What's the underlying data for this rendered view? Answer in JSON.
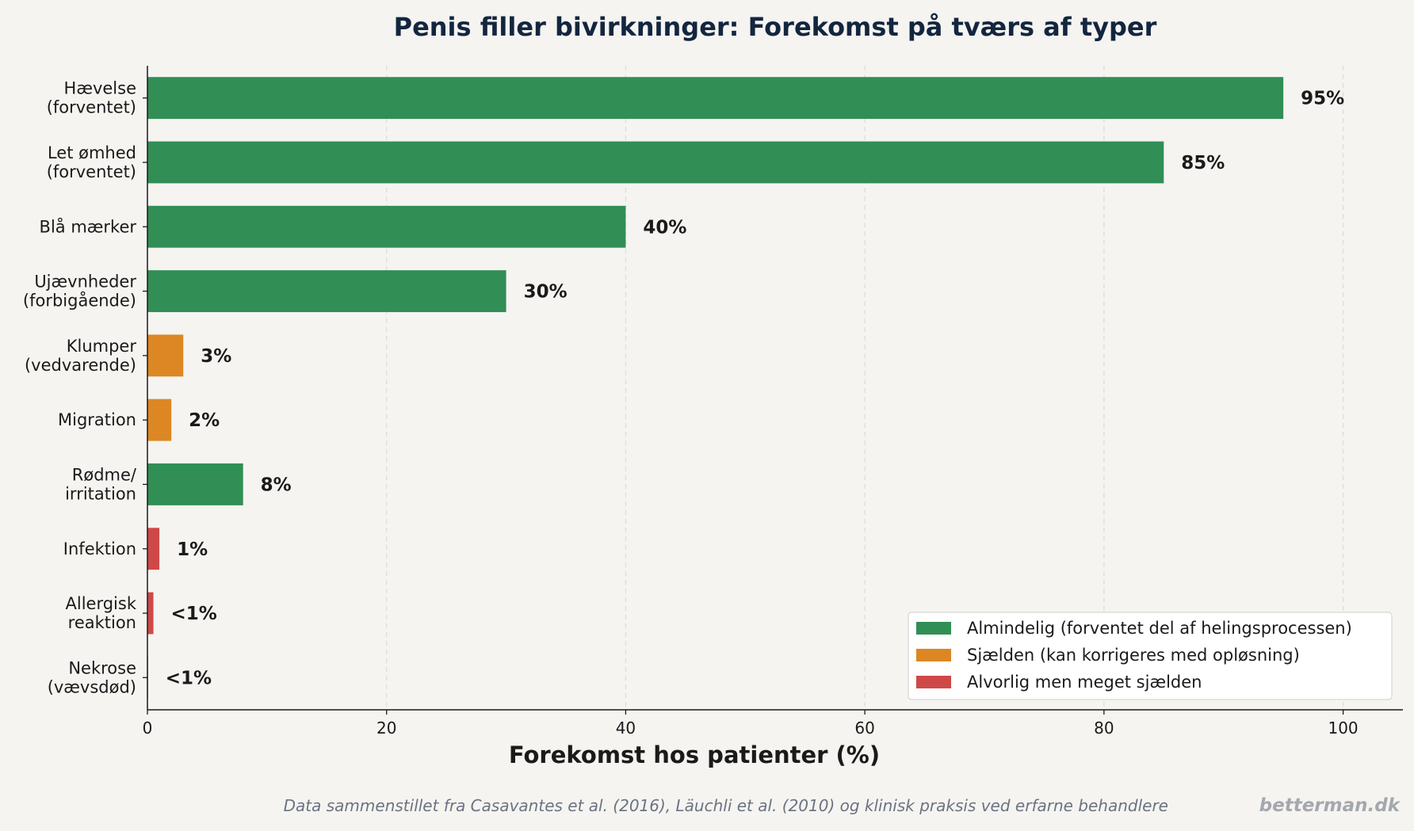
{
  "chart_data": {
    "type": "bar",
    "orientation": "horizontal",
    "title": "Penis filler bivirkninger: Forekomst på tværs af typer",
    "xlabel": "Forekomst hos patienter (%)",
    "ylabel": "",
    "xlim": [
      0,
      105
    ],
    "x_ticks": [
      "0",
      "20",
      "40",
      "60",
      "80",
      "100"
    ],
    "x_tick_values": [
      0,
      20,
      40,
      60,
      80,
      100
    ],
    "grid": "vertical dashed",
    "legend_position": "bottom-right",
    "categories": [
      [
        "Hævelse",
        "(forventet)"
      ],
      [
        "Let ømhed",
        "(forventet)"
      ],
      [
        "Blå mærker"
      ],
      [
        "Ujævnheder",
        "(forbigående)"
      ],
      [
        "Klumper",
        "(vedvarende)"
      ],
      [
        "Migration"
      ],
      [
        "Rødme/",
        "irritation"
      ],
      [
        "Infektion"
      ],
      [
        "Allergisk",
        "reaktion"
      ],
      [
        "Nekrose",
        "(vævsdød)"
      ]
    ],
    "values": [
      95,
      85,
      40,
      30,
      3,
      2,
      8,
      1,
      0.5,
      0.05
    ],
    "data_labels": [
      "95%",
      "85%",
      "40%",
      "30%",
      "3%",
      "2%",
      "8%",
      "1%",
      "<1%",
      "<1%"
    ],
    "groups": [
      0,
      0,
      0,
      0,
      1,
      1,
      0,
      2,
      2,
      2
    ],
    "legend": [
      {
        "label": "Almindelig (forventet del af helingsprocessen)",
        "color": "#318e55"
      },
      {
        "label": "Sjælden (kan korrigeres med opløsning)",
        "color": "#dc8723"
      },
      {
        "label": "Alvorlig men meget sjælden",
        "color": "#cf4848"
      }
    ]
  },
  "footer": {
    "source": "Data sammenstillet fra Casavantes et al. (2016), Läuchli et al. (2010) og klinisk praksis ved erfarne behandlere",
    "brand": "betterman.dk"
  }
}
